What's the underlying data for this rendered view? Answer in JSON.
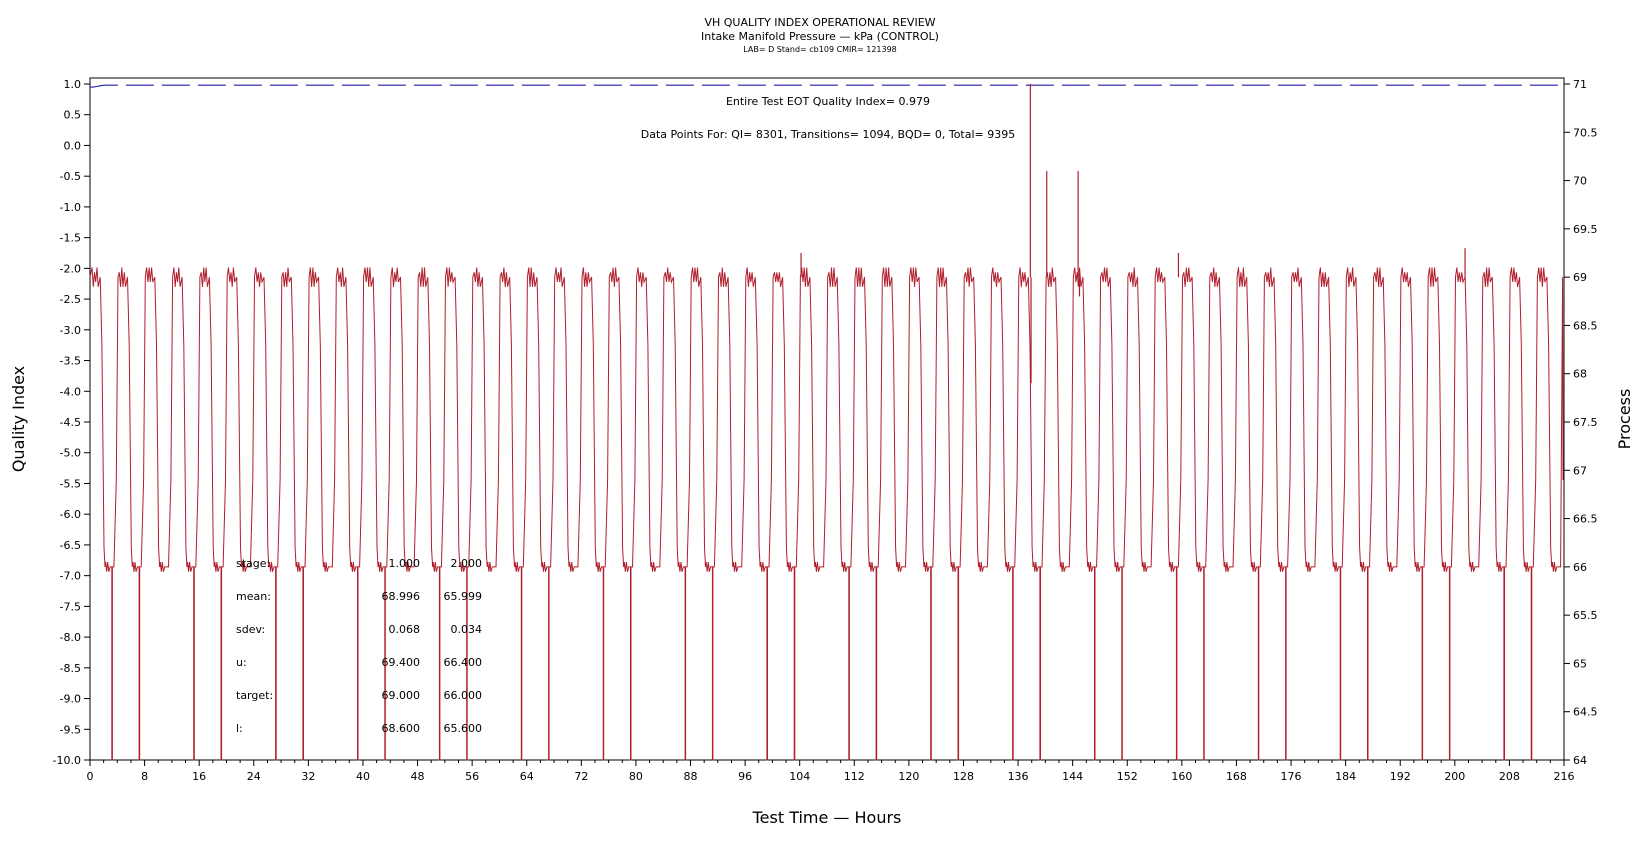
{
  "chart_data": {
    "type": "line",
    "title": "VH QUALITY INDEX OPERATIONAL REVIEW",
    "subtitle": "Intake Manifold Pressure — kPa (CONTROL)",
    "subtitle2": "LAB= D Stand= cb109 CMIR= 121398",
    "xlabel": "Test Time — Hours",
    "ylabel": "Quality Index",
    "y2label": "Process",
    "xlim": [
      0,
      216
    ],
    "ylim": [
      -10,
      1
    ],
    "y2lim": [
      64,
      71
    ],
    "xticks": [
      0,
      8,
      16,
      24,
      32,
      40,
      48,
      56,
      64,
      72,
      80,
      88,
      96,
      104,
      112,
      120,
      128,
      136,
      144,
      152,
      160,
      168,
      176,
      184,
      192,
      200,
      208,
      216
    ],
    "yticks": [
      "1.0",
      "0.5",
      "0.0",
      "-0.5",
      "-1.0",
      "-1.5",
      "-2.0",
      "-2.5",
      "-3.0",
      "-3.5",
      "-4.0",
      "-4.5",
      "-5.0",
      "-5.5",
      "-6.0",
      "-6.5",
      "-7.0",
      "-7.5",
      "-8.0",
      "-8.5",
      "-9.0",
      "-9.5",
      "-10.0"
    ],
    "y2ticks": [
      "71",
      "70.5",
      "70",
      "69.5",
      "69",
      "68.5",
      "68",
      "67.5",
      "67",
      "66.5",
      "66",
      "65.5",
      "65",
      "64.5",
      "64"
    ],
    "annotation_qi": "Entire Test EOT Quality Index=   0.979",
    "annotation_points": "Data Points For: QI=  8301, Transitions=  1094, BQD=     0, Total=  9395",
    "stats": {
      "labels": [
        "stage:",
        "mean:",
        "sdev:",
        "u:",
        "target:",
        "l:"
      ],
      "stage1": [
        "1.000",
        "68.996",
        "0.068",
        "69.400",
        "69.000",
        "68.600"
      ],
      "stage2": [
        "2.000",
        "65.999",
        "0.034",
        "66.400",
        "66.000",
        "65.600"
      ]
    },
    "series": [
      {
        "axis": "left",
        "color": "#1f1fa6",
        "style": "dashed",
        "points": [
          [
            0,
            0.95
          ],
          [
            0.5,
            0.95
          ],
          [
            1,
            0.96
          ],
          [
            1.5,
            0.97
          ],
          [
            2,
            0.98
          ],
          [
            216,
            0.98
          ]
        ]
      },
      {
        "axis": "right",
        "color": "#b01e2c",
        "style": "solid",
        "levels": {
          "high": 69.0,
          "low": 66.0,
          "min": 64.0
        },
        "cycle_period_hours": 4,
        "spikes": [
          [
            104.2,
            69.25
          ],
          [
            137.8,
            71.0
          ],
          [
            137.9,
            67.9
          ],
          [
            140.2,
            70.1
          ],
          [
            144.8,
            70.1
          ],
          [
            145.0,
            68.8
          ],
          [
            159.5,
            69.25
          ],
          [
            201.5,
            69.3
          ]
        ]
      }
    ],
    "colors": {
      "process": "#b01e2c",
      "qi": "#1f1fa6"
    }
  }
}
